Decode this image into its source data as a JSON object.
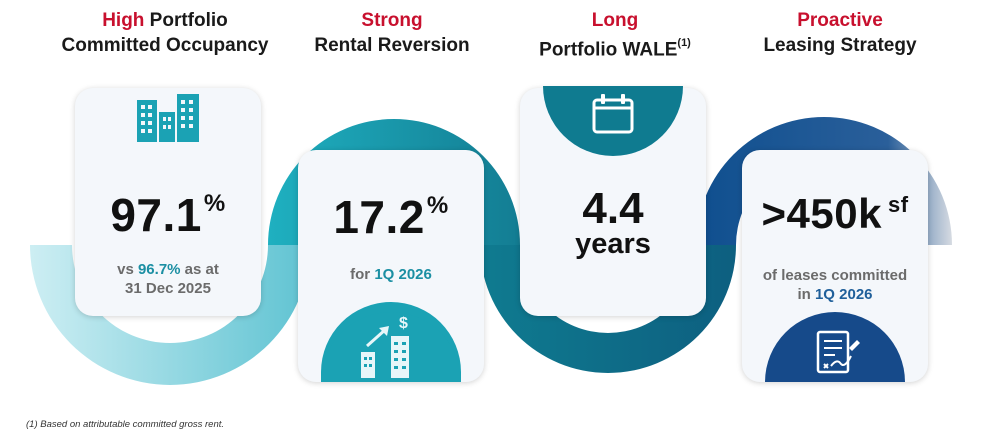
{
  "pillars": [
    {
      "accent": "High",
      "title_rest": " Portfolio",
      "title_line2": "Committed Occupancy",
      "value": "97.1",
      "unit": "%",
      "note_prefix": "vs ",
      "note_highlight": "96.7%",
      "note_suffix": " as at",
      "note_line2": "31 Dec 2025",
      "icon": "buildings-icon"
    },
    {
      "accent": "Strong",
      "title_line2": "Rental Reversion",
      "value": "17.2",
      "unit": "%",
      "note_prefix": "for ",
      "note_highlight": "1Q 2026",
      "icon": "growth-buildings-dollar-icon"
    },
    {
      "accent": "Long",
      "title_line2": "Portfolio WALE",
      "title_sup": "(1)",
      "value": "4.4",
      "value_line2": "years",
      "icon": "calendar-icon"
    },
    {
      "accent": "Proactive",
      "title_line2": "Leasing Strategy",
      "value": ">450k",
      "unit": "sf",
      "note_line1": "of leases committed",
      "note_prefix": "in ",
      "note_highlight": "1Q 2026",
      "icon": "signed-contract-icon"
    }
  ],
  "footnote": "(1)  Based on attributable committed gross rent.",
  "colors": {
    "accent_red": "#c8102e",
    "teal_light": "#9fd8e2",
    "teal": "#1ba2b4",
    "teal_dark": "#0f6f86",
    "navy": "#164a8a",
    "card_bg": "#f4f7fb"
  }
}
